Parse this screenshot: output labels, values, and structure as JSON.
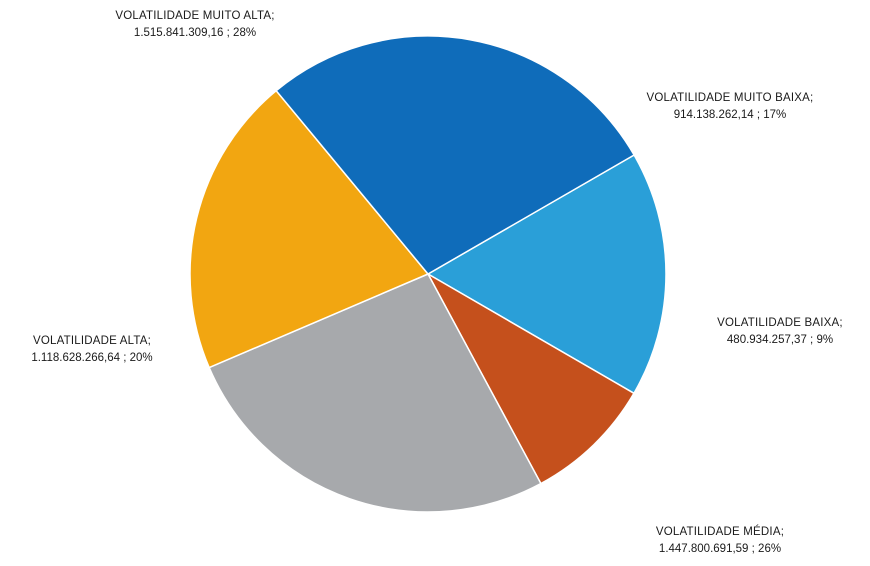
{
  "chart_data": {
    "type": "pie",
    "slices": [
      {
        "category": "VOLATILIDADE MUITO BAIXA",
        "value": 914138262.14,
        "value_text": "914.138.262,14",
        "percent_text": "17%",
        "color": "#2a9fd8"
      },
      {
        "category": "VOLATILIDADE BAIXA",
        "value": 480934257.37,
        "value_text": "480.934.257,37",
        "percent_text": "9%",
        "color": "#c5501c"
      },
      {
        "category": "VOLATILIDADE MÉDIA",
        "value": 1447800691.59,
        "value_text": "1.447.800.691,59",
        "percent_text": "26%",
        "color": "#a7a9ac"
      },
      {
        "category": "VOLATILIDADE ALTA",
        "value": 1118628266.64,
        "value_text": "1.118.628.266,64",
        "percent_text": "20%",
        "color": "#f2a611"
      },
      {
        "category": "VOLATILIDADE MUITO ALTA",
        "value": 1515841309.16,
        "value_text": "1.515.841.309,16",
        "percent_text": "28%",
        "color": "#0f6cba"
      }
    ],
    "title": "",
    "legend": "none",
    "label_format": "category; value ; percent"
  }
}
